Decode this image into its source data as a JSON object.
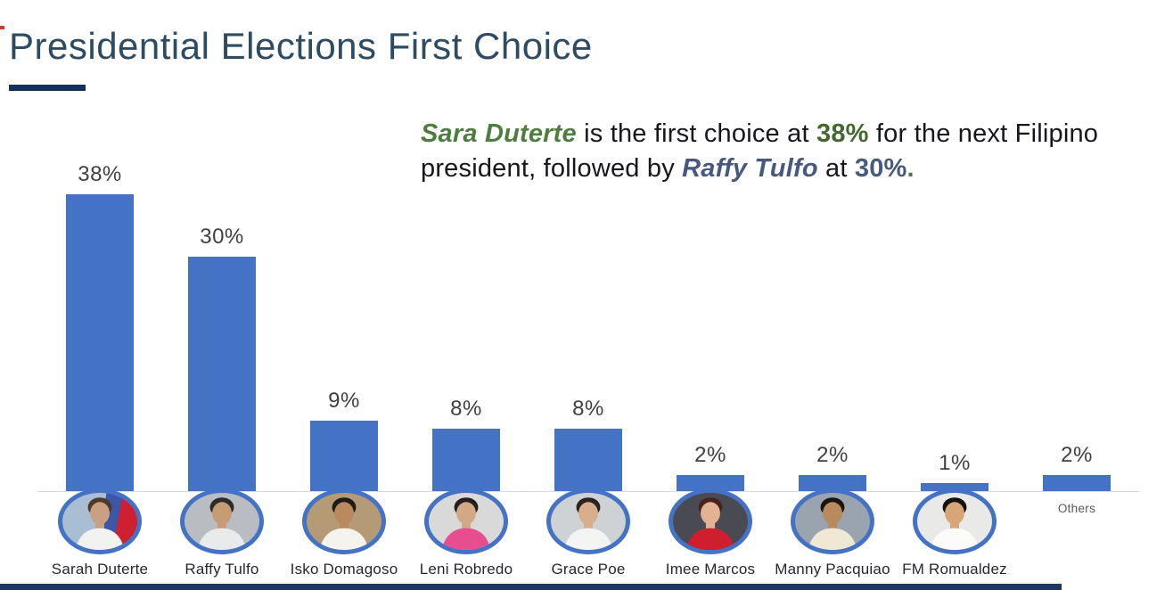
{
  "slide": {
    "title": "Presidential Elections First Choice",
    "accent_underline_color": "#16305e",
    "footer_color": "#1d3864",
    "corner_mark_color": "#c8392e"
  },
  "insight": {
    "segments": [
      {
        "text": "Sara Duterte",
        "style": "bold-italic",
        "color": "#4e7e3e"
      },
      {
        "text": " is the first choice at ",
        "style": "regular",
        "color": "#16161e"
      },
      {
        "text": "38%",
        "style": "bold",
        "color": "#41682e"
      },
      {
        "text": " for the next Filipino president, followed by ",
        "style": "regular",
        "color": "#16161e"
      },
      {
        "text": "Raffy Tulfo",
        "style": "bold-italic",
        "color": "#47597e"
      },
      {
        "text": " at ",
        "style": "regular",
        "color": "#16161e"
      },
      {
        "text": "30%",
        "style": "bold",
        "color": "#47597e"
      },
      {
        "text": ".",
        "style": "bold",
        "color": "#4e7e3e"
      }
    ]
  },
  "chart_data": {
    "type": "bar",
    "title": "Presidential Elections First Choice",
    "xlabel": "",
    "ylabel": "",
    "ylim": [
      0,
      40
    ],
    "grid": false,
    "legend": false,
    "bar_color": "#4472c4",
    "axis_line_color": "#d9d9d9",
    "value_label_color": "#404040",
    "categories": [
      "Sarah Duterte",
      "Raffy Tulfo",
      "Isko Domagoso",
      "Leni Robredo",
      "Grace Poe",
      "Imee Marcos",
      "Manny Pacquiao",
      "FM Romualdez",
      "Others"
    ],
    "values": [
      38,
      30,
      9,
      8,
      8,
      2,
      2,
      1,
      2
    ],
    "value_labels": [
      "38%",
      "30%",
      "9%",
      "8%",
      "8%",
      "2%",
      "2%",
      "1%",
      "2%"
    ],
    "candidates": [
      {
        "name": "Sarah Duterte",
        "value": 38,
        "label": "38%",
        "avatar": {
          "bg": "linear-gradient(100deg,#a9bed2 52%,#3b57a8 52%,#3b57a8 71%,#ce2030 71%)",
          "hair": "#50392b",
          "skin": "#caa083",
          "shirt": "#f2f2f0"
        }
      },
      {
        "name": "Raffy Tulfo",
        "value": 30,
        "label": "30%",
        "avatar": {
          "bg": "#b9bdc2",
          "hair": "#2b2b2b",
          "skin": "#c79b74",
          "shirt": "#e9eaeb"
        }
      },
      {
        "name": "Isko Domagoso",
        "value": 9,
        "label": "9%",
        "avatar": {
          "bg": "#b59a76",
          "hair": "#1f1b18",
          "skin": "#b98a5e",
          "shirt": "#f5f3ee"
        }
      },
      {
        "name": "Leni Robredo",
        "value": 8,
        "label": "8%",
        "avatar": {
          "bg": "#d9d9d9",
          "hair": "#241f1e",
          "skin": "#d3a886",
          "shirt": "#e74e8f"
        }
      },
      {
        "name": "Grace Poe",
        "value": 8,
        "label": "8%",
        "avatar": {
          "bg": "#cfd2d4",
          "hair": "#2a2321",
          "skin": "#d9ae8c",
          "shirt": "#f4f4f4"
        }
      },
      {
        "name": "Imee Marcos",
        "value": 2,
        "label": "2%",
        "avatar": {
          "bg": "#4a4a52",
          "hair": "#46241c",
          "skin": "#e3b292",
          "shirt": "#cf1f2e"
        }
      },
      {
        "name": "Manny Pacquiao",
        "value": 2,
        "label": "2%",
        "avatar": {
          "bg": "#9aa4ae",
          "hair": "#18140f",
          "skin": "#b98a5e",
          "shirt": "#efe8d4"
        }
      },
      {
        "name": "FM Romualdez",
        "value": 1,
        "label": "1%",
        "avatar": {
          "bg": "#e9e9e7",
          "hair": "#14110e",
          "skin": "#d8a577",
          "shirt": "#fbfbf9"
        }
      },
      {
        "name": "Others",
        "value": 2,
        "label": "2%",
        "avatar": null
      }
    ]
  }
}
